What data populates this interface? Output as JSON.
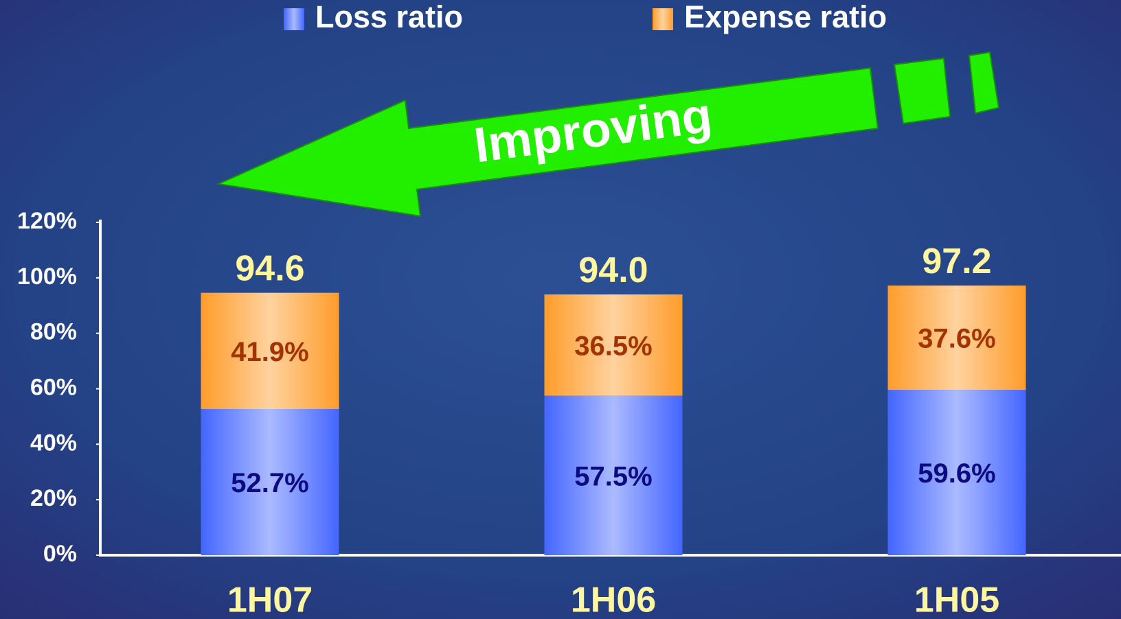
{
  "chart_data": {
    "type": "stacked_bar",
    "annotation": "Improving",
    "categories": [
      "1H07",
      "1H06",
      "1H05"
    ],
    "series": [
      {
        "name": "Loss ratio",
        "color": "#4466ff",
        "values": [
          52.7,
          57.5,
          59.6
        ],
        "value_labels": [
          "52.7%",
          "57.5%",
          "59.6%"
        ]
      },
      {
        "name": "Expense ratio",
        "color": "#ff9c2a",
        "values": [
          41.9,
          36.5,
          37.6
        ],
        "value_labels": [
          "41.9%",
          "36.5%",
          "37.6%"
        ]
      }
    ],
    "totals": {
      "values": [
        94.6,
        94.0,
        97.2
      ],
      "value_labels": [
        "94.6",
        "94.0",
        "97.2"
      ]
    },
    "ylim": [
      0,
      120
    ],
    "yticks": [
      {
        "value": 0,
        "label": "0%"
      },
      {
        "value": 20,
        "label": "20%"
      },
      {
        "value": 40,
        "label": "40%"
      },
      {
        "value": 60,
        "label": "60%"
      },
      {
        "value": 80,
        "label": "80%"
      },
      {
        "value": 100,
        "label": "100%"
      },
      {
        "value": 120,
        "label": "120%"
      }
    ],
    "grid": false
  }
}
